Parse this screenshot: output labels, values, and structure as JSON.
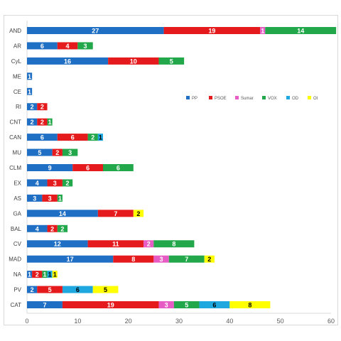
{
  "chart_data": {
    "type": "bar",
    "stacked": true,
    "orientation": "horizontal",
    "title": "",
    "xlabel": "",
    "ylabel": "",
    "xlim": [
      0,
      60
    ],
    "xticks": [
      0,
      10,
      20,
      30,
      40,
      50,
      60
    ],
    "grid": false,
    "legend_position": "right-center",
    "categories": [
      "AND",
      "AR",
      "CyL",
      "ME",
      "CE",
      "RI",
      "CNT",
      "CAN",
      "MU",
      "CLM",
      "EX",
      "AS",
      "GA",
      "BAL",
      "CV",
      "MAD",
      "NA",
      "PV",
      "CAT"
    ],
    "series": [
      {
        "name": "PP",
        "color": "#1f6fc5",
        "label_color": "#ffffff",
        "values": [
          27,
          6,
          16,
          1,
          1,
          2,
          2,
          6,
          5,
          9,
          4,
          3,
          14,
          4,
          12,
          17,
          1,
          2,
          7
        ]
      },
      {
        "name": "PSOE",
        "color": "#e41a1c",
        "label_color": "#ffffff",
        "values": [
          19,
          4,
          10,
          0,
          0,
          2,
          2,
          6,
          2,
          6,
          3,
          3,
          7,
          2,
          11,
          8,
          2,
          5,
          19
        ]
      },
      {
        "name": "Sumar",
        "color": "#e75bc5",
        "label_color": "#ffffff",
        "values": [
          1,
          0,
          0,
          0,
          0,
          0,
          0,
          0,
          0,
          0,
          0,
          0,
          0,
          0,
          2,
          3,
          0,
          0,
          3
        ]
      },
      {
        "name": "VOX",
        "color": "#22a84a",
        "label_color": "#ffffff",
        "values": [
          14,
          3,
          5,
          0,
          0,
          0,
          1,
          2,
          3,
          6,
          2,
          1,
          0,
          2,
          8,
          7,
          1,
          0,
          5
        ]
      },
      {
        "name": "OD",
        "color": "#1fa8e0",
        "label_color": "#000000",
        "values": [
          0,
          0,
          0,
          0,
          0,
          0,
          0,
          1,
          0,
          0,
          0,
          0,
          0,
          0,
          0,
          0,
          1,
          6,
          6
        ]
      },
      {
        "name": "OI",
        "color": "#ffff00",
        "label_color": "#000000",
        "values": [
          0,
          0,
          0,
          0,
          0,
          0,
          0,
          0,
          0,
          0,
          0,
          0,
          2,
          0,
          0,
          2,
          1,
          5,
          8
        ]
      }
    ]
  }
}
